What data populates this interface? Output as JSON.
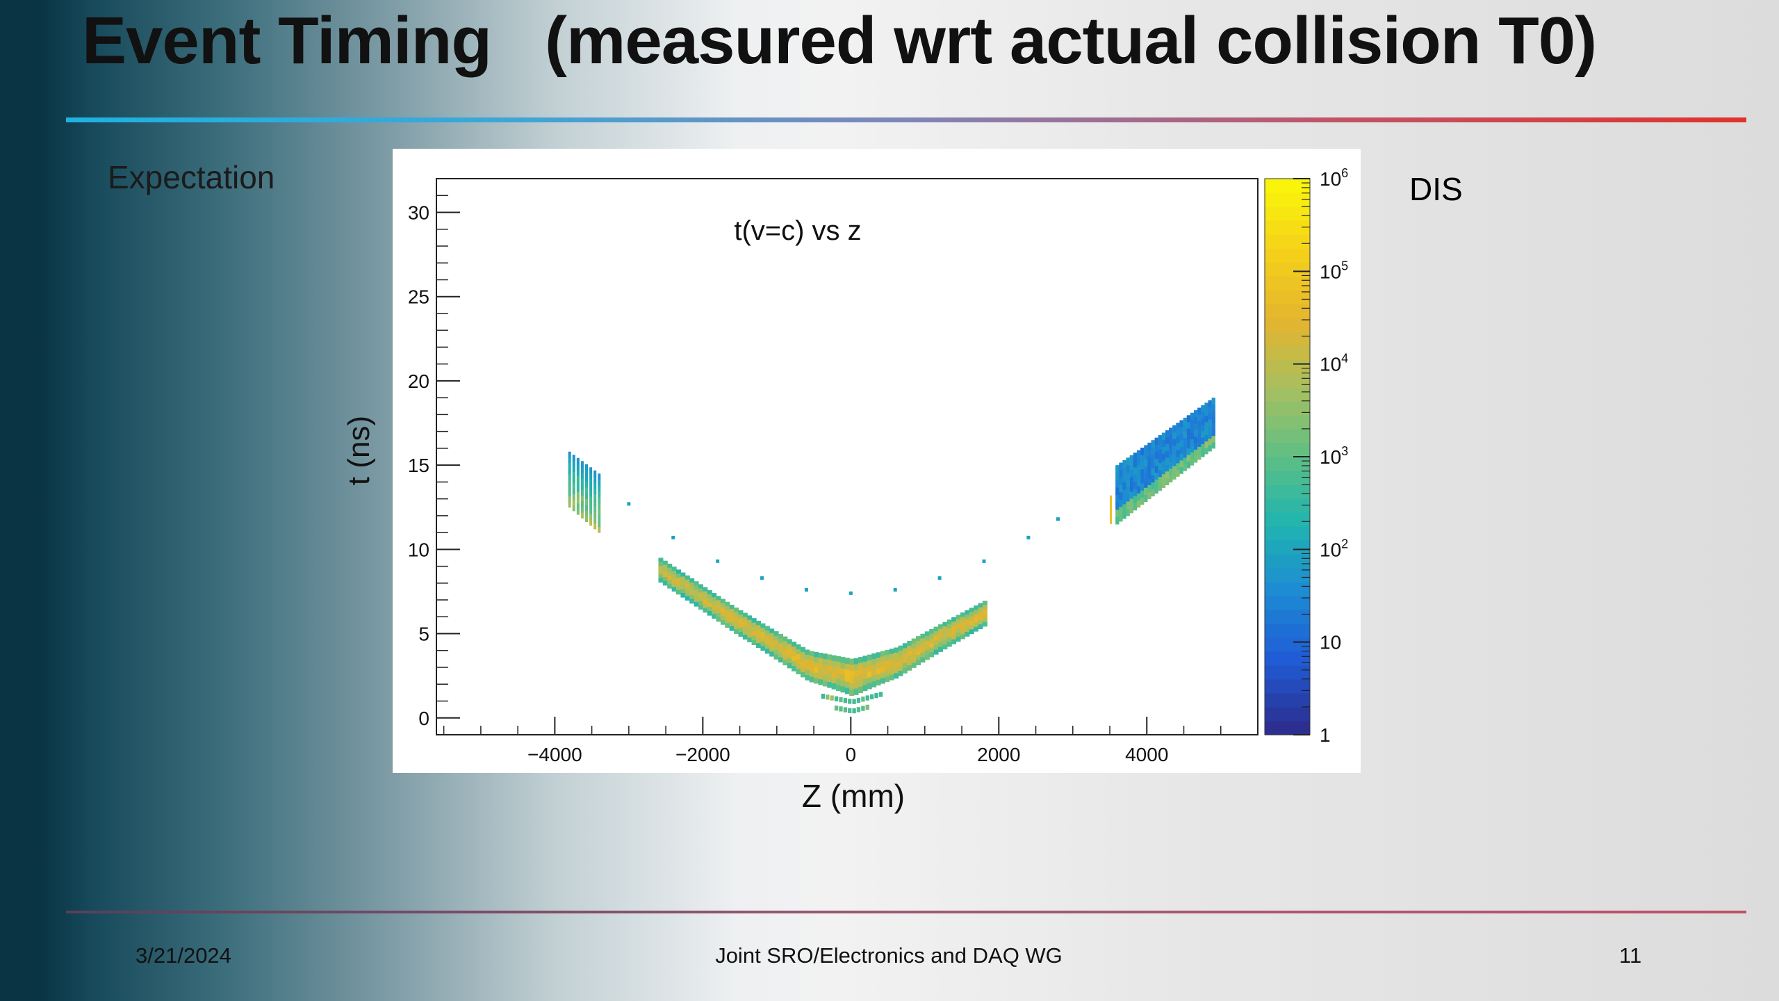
{
  "slide": {
    "title": "Event Timing   (measured wrt actual collision T0)",
    "left_label": "Expectation",
    "right_label": "DIS",
    "footer": {
      "date": "3/21/2024",
      "center": "Joint SRO/Electronics and DAQ WG",
      "page": "11"
    }
  },
  "chart_data": {
    "type": "heatmap",
    "title": "t(v=c) vs z",
    "xlabel": "Z (mm)",
    "ylabel": "t (ns)",
    "xlim": [
      -5600,
      5500
    ],
    "ylim": [
      -1,
      32
    ],
    "x_ticks": [
      -4000,
      -2000,
      0,
      2000,
      4000
    ],
    "x_tick_labels": [
      "−4000",
      "−2000",
      "0",
      "2000",
      "4000"
    ],
    "y_ticks": [
      0,
      5,
      10,
      15,
      20,
      25,
      30
    ],
    "y_tick_labels": [
      "0",
      "5",
      "10",
      "15",
      "20",
      "25",
      "30"
    ],
    "z_scale": "log",
    "zlim": [
      1,
      1000000
    ],
    "colorbar_tick_labels": [
      {
        "base": "1",
        "exp": "",
        "value": 1
      },
      {
        "base": "10",
        "exp": "",
        "value": 10
      },
      {
        "base": "10",
        "exp": "2",
        "value": 100
      },
      {
        "base": "10",
        "exp": "3",
        "value": 1000
      },
      {
        "base": "10",
        "exp": "4",
        "value": 10000
      },
      {
        "base": "10",
        "exp": "5",
        "value": 100000
      },
      {
        "base": "10",
        "exp": "6",
        "value": 1000000
      }
    ],
    "colormap": [
      "#2c2f8f",
      "#1f5bd6",
      "#1d8ad4",
      "#1fb4b0",
      "#5dbf85",
      "#a7c060",
      "#e3b42e",
      "#f5d11a",
      "#f9f40a"
    ],
    "series": [
      {
        "segment": "left-endcap-cluster",
        "z": [
          -3800,
          -3400
        ],
        "t_at_start": [
          12.5,
          15.8
        ],
        "t_at_end": [
          11.0,
          14.5
        ]
      },
      {
        "segment": "central-barrel-band",
        "points": [
          [
            -2600,
            9.5
          ],
          [
            -1600,
            6.6
          ],
          [
            -600,
            4.0
          ],
          [
            0,
            3.5
          ],
          [
            600,
            4.2
          ],
          [
            1800,
            7.0
          ]
        ]
      },
      {
        "segment": "right-endcap-cluster",
        "z": [
          3600,
          4900
        ],
        "t_at_start": [
          11.5,
          15.0
        ],
        "t_at_end": [
          16.0,
          19.0
        ]
      },
      {
        "segment": "sparse-dotted-curve",
        "points": [
          [
            -3000,
            12.7
          ],
          [
            -2400,
            10.7
          ],
          [
            -1800,
            9.3
          ],
          [
            -1200,
            8.3
          ],
          [
            -600,
            7.6
          ],
          [
            0,
            7.4
          ],
          [
            600,
            7.6
          ],
          [
            1200,
            8.3
          ],
          [
            1800,
            9.3
          ],
          [
            2400,
            10.7
          ],
          [
            2800,
            11.8
          ]
        ]
      }
    ]
  }
}
